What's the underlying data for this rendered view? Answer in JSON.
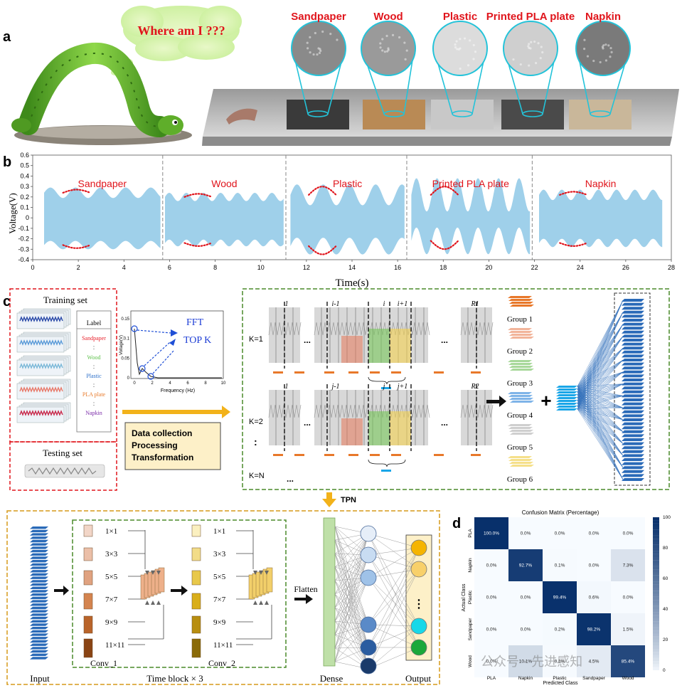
{
  "panel_a": {
    "label": "a",
    "speech": "Where am I ???",
    "surfaces": [
      {
        "name": "Sandpaper",
        "color": "#3a3a3a",
        "texture": "#8a8a8a"
      },
      {
        "name": "Wood",
        "color": "#b98a55",
        "texture": "#9a9a9a"
      },
      {
        "name": "Plastic",
        "color": "#c8c8c8",
        "texture": "#dcdcdc"
      },
      {
        "name": "Printed PLA plate",
        "color": "#4a4a4a",
        "texture": "#cfcfcf"
      },
      {
        "name": "Napkin",
        "color": "#c9b79a",
        "texture": "#7a7a7a"
      }
    ]
  },
  "panel_b": {
    "label": "b",
    "ylabel": "Voltage(V)",
    "xlabel": "Time(s)",
    "yticks": [
      "0.6",
      "0.5",
      "0.4",
      "0.3",
      "0.2",
      "0.1",
      "0",
      "-0.1",
      "-0.2",
      "-0.3",
      "-0.4"
    ],
    "xticks": [
      "0",
      "2",
      "4",
      "6",
      "8",
      "10",
      "12",
      "14",
      "16",
      "18",
      "20",
      "22",
      "24",
      "26",
      "28"
    ],
    "segments": [
      "Sandpaper",
      "Wood",
      "Plastic",
      "Printed PLA plate",
      "Napkin"
    ]
  },
  "panel_c": {
    "label": "c",
    "training_set": "Training set",
    "testing_set": "Testing set",
    "label_header": "Label",
    "labels": [
      {
        "text": "Sandpaper",
        "color": "#e8202a"
      },
      {
        "text": "Wood",
        "color": "#5cc04a"
      },
      {
        "text": "Plastic",
        "color": "#2c6fc9"
      },
      {
        "text": "PLA plate",
        "color": "#e87a2a"
      },
      {
        "text": "Napkin",
        "color": "#7a2aa8"
      }
    ],
    "dots": ":",
    "fft": "FFT",
    "topk": "TOP K",
    "freq_label": "Frequency (Hz)",
    "volt_label": "Voltage(V)",
    "fft_yticks": [
      "0.15",
      "0.1",
      "0.05",
      "0"
    ],
    "fft_xticks": [
      "0",
      "2",
      "4",
      "6",
      "8",
      "10"
    ],
    "process_lines": [
      "Data collection",
      "Processing",
      "Transformation"
    ],
    "k_labels": [
      "K=1",
      "K=2",
      "K=N"
    ],
    "ellipsis": "...",
    "top_marks": [
      "1",
      "i-1",
      "i",
      "i+1",
      "R1"
    ],
    "top_marks2": [
      "1",
      "j-1",
      "j",
      "j+1",
      "R2"
    ],
    "groups": [
      "Group 1",
      "Group 2",
      "Group 3",
      "Group 4",
      "Group 5",
      "Group 6"
    ],
    "group_colors": [
      "#e8782a",
      "#f2b49a",
      "#a8d89a",
      "#7fb4e8",
      "#cfcfcf",
      "#f5e08a"
    ],
    "tpn": "TPN"
  },
  "panel_net": {
    "input": "Input",
    "conv1": "Conv_1",
    "conv2": "Conv_2",
    "time_block": "Time block × 3",
    "kernels": [
      "1×1",
      "3×3",
      "5×5",
      "7×7",
      "9×9",
      "11×11"
    ],
    "flatten": "Flatten",
    "dense": "Dense",
    "output": "Output"
  },
  "panel_d": {
    "label": "d",
    "chart_data": {
      "type": "heatmap",
      "title": "Confusion Matrix (Percentage)",
      "xlabel": "Predicted Class",
      "ylabel": "Actual Class",
      "classes_x": [
        "PLA",
        "Napkin",
        "Plastic",
        "Sandpaper",
        "Wood"
      ],
      "classes_y": [
        "PLA",
        "Napkin",
        "Plastic",
        "Sandpaper",
        "Wood"
      ],
      "values": [
        [
          100.0,
          0.0,
          0.0,
          0.0,
          0.0
        ],
        [
          0.0,
          92.7,
          0.1,
          0.0,
          7.3
        ],
        [
          0.0,
          0.0,
          99.4,
          0.6,
          0.0
        ],
        [
          0.0,
          0.0,
          0.2,
          98.2,
          1.5
        ],
        [
          0.0,
          10.1,
          0.1,
          4.5,
          85.4
        ]
      ],
      "cell_labels": [
        [
          "100.0%",
          "0.0%",
          "0.0%",
          "0.0%",
          "0.0%"
        ],
        [
          "0.0%",
          "92.7%",
          "0.1%",
          "0.0%",
          "7.3%"
        ],
        [
          "0.0%",
          "0.0%",
          "99.4%",
          "0.6%",
          "0.0%"
        ],
        [
          "0.0%",
          "0.0%",
          "0.2%",
          "98.2%",
          "1.5%"
        ],
        [
          "0.0%",
          "10.1%",
          "0.1%",
          "4.5%",
          "85.4%"
        ]
      ],
      "colorbar_ticks": [
        "100",
        "80",
        "60",
        "40",
        "20",
        "0"
      ],
      "zlim": [
        0,
        100
      ]
    }
  },
  "watermark": "公众号 · 先进感知"
}
